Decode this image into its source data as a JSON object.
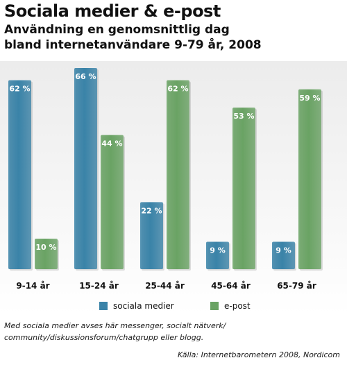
{
  "title": "Sociala medier & e-post",
  "subtitle": "Användning en genomsnittlig dag\nbland internetanvändare 9-79 år, 2008",
  "chart_data": {
    "type": "bar",
    "categories": [
      "9-14 år",
      "15-24 år",
      "25-44 år",
      "45-64 år",
      "65-79 år"
    ],
    "series": [
      {
        "name": "sociala medier",
        "color": "#3a83a8",
        "values": [
          62,
          66,
          22,
          9,
          9
        ],
        "labels": [
          "62 %",
          "66 %",
          "22 %",
          "9 %",
          "9 %"
        ]
      },
      {
        "name": "e-post",
        "color": "#6aa364",
        "values": [
          10,
          44,
          62,
          53,
          59
        ],
        "labels": [
          "10 %",
          "44 %",
          "62 %",
          "53 %",
          "59 %"
        ]
      }
    ],
    "ylim": [
      0,
      66
    ],
    "grid": false,
    "legend_position": "bottom",
    "xlabel": "",
    "ylabel": ""
  },
  "footnote": "Med sociala medier avses här messenger, socialt nätverk/ community/diskussionsforum/chatgrupp eller blogg.",
  "source": "Källa: Internetbarometern 2008, Nordicom"
}
